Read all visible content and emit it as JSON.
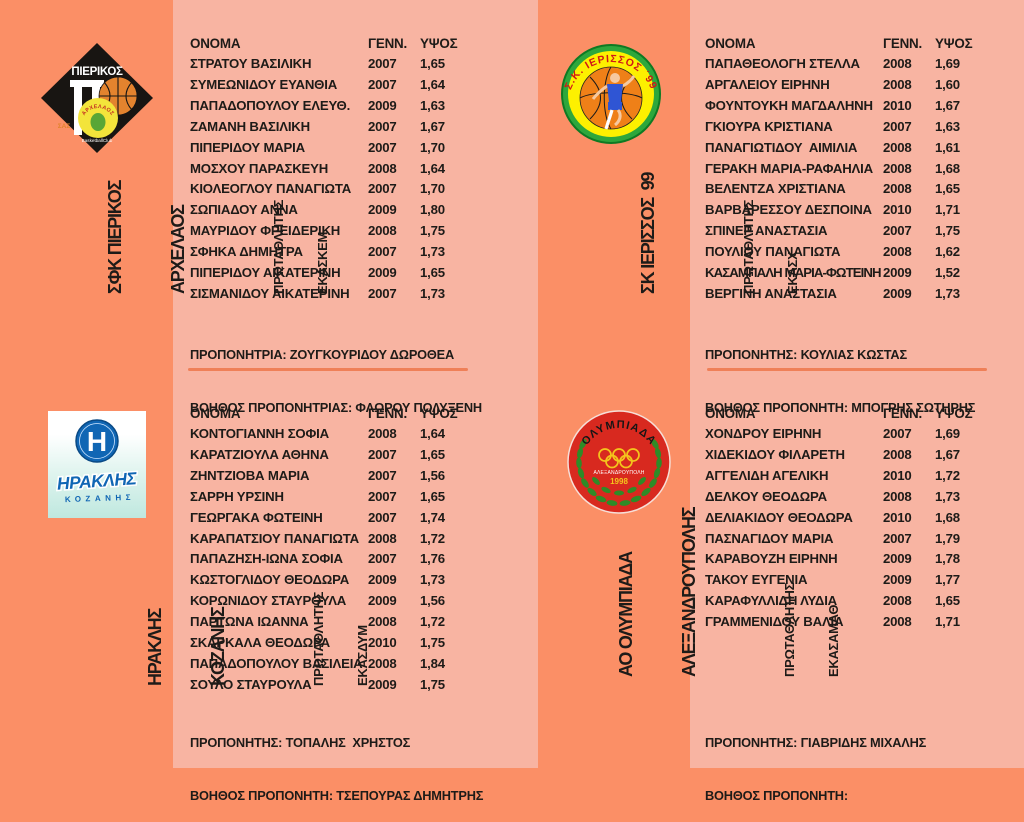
{
  "page": {
    "background": "#fb8f66",
    "panel_background": "#f8b4a2",
    "divider_color": "#ef8058",
    "text_color": "#1e1b18"
  },
  "table_headers": {
    "name": "ΟΝΟΜΑ",
    "born": "ΓΕΝΝ.",
    "height": "ΥΨΟΣ"
  },
  "teams": [
    {
      "id": "pierikos",
      "name_lines": [
        "ΣΦΚ ΠΙΕΡΙΚΟΣ",
        "ΑΡΧΕΛΑΟΣ"
      ],
      "title_lines": [
        "ΠΡΩΤΑΘΛΗΤΗΣ",
        "ΕΚΑΣΚΕΜ"
      ],
      "coach_line1": "ΠΡΟΠΟΝΗΤΡΙΑ: ΖΟΥΓΚΟΥΡΙΔΟΥ ΔΩΡΟΘΕΑ",
      "coach_line2": "ΒΟΗΘΟΣ ΠΡΟΠΟΝΗΤΡΙΑΣ: ΦΛΩΡΟΥ ΠΟΛΥΞΕΝΗ",
      "players": [
        [
          "ΣΤΡΑΤΟΥ ΒΑΣΙΛΙΚΗ",
          "2007",
          "1,65"
        ],
        [
          "ΣΥΜΕΩΝΙΔΟΥ ΕΥΑΝΘΙΑ",
          "2007",
          "1,64"
        ],
        [
          "ΠΑΠΑΔΟΠΟΥΛΟΥ ΕΛΕΥΘ.",
          "2009",
          "1,63"
        ],
        [
          "ΖΑΜΑΝΗ ΒΑΣΙΛΙΚΗ",
          "2007",
          "1,67"
        ],
        [
          "ΠΙΠΕΡΙΔΟΥ ΜΑΡΙΑ",
          "2007",
          "1,70"
        ],
        [
          "ΜΟΣΧΟΥ ΠΑΡΑΣΚΕΥΗ",
          "2008",
          "1,64"
        ],
        [
          "ΚΙΟΛΕΟΓΛΟΥ ΠΑΝΑΓΙΩΤΑ",
          "2007",
          "1,70"
        ],
        [
          "ΣΩΠΙΑΔΟΥ ΑΝΝΑ",
          "2009",
          "1,80"
        ],
        [
          "ΜΑΥΡΙΔΟΥ ΦΡΕΙΔΕΡΙΚΗ",
          "2008",
          "1,75"
        ],
        [
          "ΣΦΗΚΑ ΔΗΜΗΤΡΑ",
          "2007",
          "1,73"
        ],
        [
          "ΠΙΠΕΡΙΔΟΥ ΑΙΚΑΤΕΡΙΝΗ",
          "2009",
          "1,65"
        ],
        [
          "ΣΙΣΜΑΝΙΔΟΥ ΑΙΚΑΤΕΡΙΝΗ",
          "2007",
          "1,73"
        ]
      ]
    },
    {
      "id": "ierissos",
      "name_lines": [
        "ΣΚ ΙΕΡΙΣΣΟΣ  99"
      ],
      "title_lines": [
        "ΠΡΩΤΑΘΛΗΤΗΣ",
        "ΕΚΑΣΧ"
      ],
      "coach_line1": "ΠΡΟΠΟΝΗΤΗΣ: ΚΟΥΛΙΑΣ ΚΩΣΤΑΣ",
      "coach_line2": "ΒΟΗΘΟΣ ΠΡΟΠΟΝΗΤΗ: ΜΠΟΓΡΗΣ ΣΩΤΗΡΗΣ",
      "players": [
        [
          "ΠΑΠΑΘΕΟΛΟΓΗ ΣΤΕΛΛΑ",
          "2008",
          "1,69"
        ],
        [
          "ΑΡΓΑΛΕΙΟΥ ΕΙΡΗΝΗ",
          "2008",
          "1,60"
        ],
        [
          "ΦΟΥΝΤΟΥΚΗ ΜΑΓΔΑΛΗΝΗ",
          "2010",
          "1,67"
        ],
        [
          "ΓΚΙΟΥΡΑ ΚΡΙΣΤΙΑΝΑ",
          "2007",
          "1,63"
        ],
        [
          "ΠΑΝΑΓΙΩΤΙΔΟΥ  ΑΙΜΙΛΙΑ",
          "2008",
          "1,61"
        ],
        [
          "ΓΕΡΑΚΗ ΜΑΡΙΑ-ΡΑΦΑΗΛΙΑ",
          "2008",
          "1,68"
        ],
        [
          "ΒΕΛΕΝΤΖΑ ΧΡΙΣΤΙΑΝΑ",
          "2008",
          "1,65"
        ],
        [
          "ΒΑΡΒΑΡΕΣΣΟΥ ΔΕΣΠΟΙΝΑ",
          "2010",
          "1,71"
        ],
        [
          "ΣΠΙΝΕΡ ΑΝΑΣΤΑΣΙΑ",
          "2007",
          "1,75"
        ],
        [
          "ΠΟΥΛΙΟΥ ΠΑΝΑΓΙΩΤΑ",
          "2008",
          "1,62"
        ],
        [
          "ΚΑΣΑΜΠΑΛΗ ΜΑΡΙΑ-ΦΩΤΕΙΝΗ",
          "2009",
          "1,52"
        ],
        [
          "ΒΕΡΓΙΝΗ ΑΝΑΣΤΑΣΙΑ",
          "2009",
          "1,73"
        ]
      ]
    },
    {
      "id": "iraklis",
      "name_lines": [
        "ΗΡΑΚΛΗΣ",
        "ΚΟΖΑΝΗΣ"
      ],
      "title_lines": [
        "ΠΡΩΤΑΘΛΗΤΗΣ",
        "ΕΚΑΣΔΥΜ"
      ],
      "coach_line1": "ΠΡΟΠΟΝΗΤΗΣ: ΤΟΠΑΛΗΣ  ΧΡΗΣΤΟΣ",
      "coach_line2": "ΒΟΗΘΟΣ ΠΡΟΠΟΝΗΤΗ: ΤΣΕΠΟΥΡΑΣ ΔΗΜΗΤΡΗΣ",
      "players": [
        [
          "ΚΟΝΤΟΓΙΑΝΝΗ ΣΟΦΙΑ",
          "2008",
          "1,64"
        ],
        [
          "ΚΑΡΑΤΖΙΟΥΛΑ ΑΘΗΝΑ",
          "2007",
          "1,65"
        ],
        [
          "ΖΗΝΤΖΙΟΒΑ ΜΑΡΙΑ",
          "2007",
          "1,56"
        ],
        [
          "ΣΑΡΡΗ ΥΡΣΙΝΗ",
          "2007",
          "1,65"
        ],
        [
          "ΓΕΩΡΓΑΚΑ ΦΩΤΕΙΝΗ",
          "2007",
          "1,74"
        ],
        [
          "ΚΑΡΑΠΑΤΣΙΟΥ ΠΑΝΑΓΙΩΤΑ",
          "2008",
          "1,72"
        ],
        [
          "ΠΑΠΑΖΗΣΗ-ΙΩΝΑ ΣΟΦΙΑ",
          "2007",
          "1,76"
        ],
        [
          "ΚΩΣΤΟΓΛΙΔΟΥ ΘΕΟΔΩΡΑ",
          "2009",
          "1,73"
        ],
        [
          "ΚΟΡΩΝΙΔΟΥ ΣΤΑΥΡΟΥΛΑ",
          "2009",
          "1,56"
        ],
        [
          "ΠΑΡΤΩΝΑ ΙΩΑΝΝΑ",
          "2008",
          "1,72"
        ],
        [
          "ΣΚΑΡΚΑΛΑ ΘΕΟΔΩΡΑ",
          "2010",
          "1,75"
        ],
        [
          "ΠΑΠΑΔΟΠΟΥΛΟΥ ΒΑΣΙΛΕΙΑ",
          "2008",
          "1,84"
        ],
        [
          "ΣΟΥΛΟ ΣΤΑΥΡΟΥΛΑ",
          "2009",
          "1,75"
        ]
      ]
    },
    {
      "id": "olympiada",
      "name_lines": [
        "ΑΟ ΟΛΥΜΠΙΑΔΑ",
        "ΑΛΕΞΑΝΔΡΟΥΠΟΛΗΣ"
      ],
      "title_lines": [
        "ΠΡΩΤΑΘΛΗΤΗΣ",
        "ΕΚΑΣΑΜΑΘ"
      ],
      "coach_line1": "ΠΡΟΠΟΝΗΤΗΣ: ΓΙΑΒΡΙΔΗΣ ΜΙΧΑΛΗΣ",
      "coach_line2": "ΒΟΗΘΟΣ ΠΡΟΠΟΝΗΤΗ:",
      "players": [
        [
          "ΧΟΝΔΡΟΥ ΕΙΡΗΝΗ",
          "2007",
          "1,69"
        ],
        [
          "ΧΙΔΕΚΙΔΟΥ ΦΙΛΑΡΕΤΗ",
          "2008",
          "1,67"
        ],
        [
          "ΑΓΓΕΛΙΔΗ ΑΓΕΛΙΚΗ",
          "2010",
          "1,72"
        ],
        [
          "ΔΕΛΚΟΥ ΘΕΟΔΩΡΑ",
          "2008",
          "1,73"
        ],
        [
          "ΔΕΛΙΑΚΙΔΟΥ ΘΕΟΔΩΡΑ",
          "2010",
          "1,68"
        ],
        [
          "ΠΑΣΝΑΓΙΔΟΥ ΜΑΡΙΑ",
          "2007",
          "1,79"
        ],
        [
          "ΚΑΡΑΒΟΥΖΗ ΕΙΡΗΝΗ",
          "2009",
          "1,78"
        ],
        [
          "ΤΑΚΟΥ ΕΥΓΕΝΙΑ",
          "2009",
          "1,77"
        ],
        [
          "ΚΑΡΑΦΥΛΛΙΔΗ ΛΥΔΙΑ",
          "2008",
          "1,65"
        ],
        [
          "ΓΡΑΜΜΕΝΙΔΟΥ ΒΑΛΙΑ",
          "2008",
          "1,71"
        ]
      ]
    }
  ],
  "logos": {
    "pierikos": {
      "club_text": "ΠΙΕΡΙΚΟΣ",
      "badge_text": "ΑΡΧΕΛΑΟΣ",
      "side_text": "ΣΑΣ",
      "bottom_text": "BasketballClub",
      "colors": {
        "black": "#181512",
        "ball": "#e3832e",
        "badge": "#f3e43b",
        "badge_text": "#c32d21"
      }
    },
    "ierissos": {
      "ring_text": "Σ.Κ. ΙΕΡΙΣΣΟΣ ΄99",
      "colors": {
        "ring": "#2ea73c",
        "fill": "#fdf000",
        "ball": "#ef8018",
        "text": "#d01818"
      }
    },
    "iraklis": {
      "initial": "Η",
      "club_text": "ΗΡΑΚΛΗΣ",
      "city_text": "ΚΟΖΑΝΗΣ",
      "colors": {
        "blue": "#1066b4"
      }
    },
    "olympiada": {
      "ring_text": "ΟΛΥΜΠΙΑΔΑ",
      "city_text": "ΑΛΕΞΑΝΔΡΟΥΠΟΛΗ",
      "year_text": "1998",
      "colors": {
        "red": "#d8291f",
        "yellow": "#f4c51c",
        "green": "#2f8b27"
      }
    }
  }
}
